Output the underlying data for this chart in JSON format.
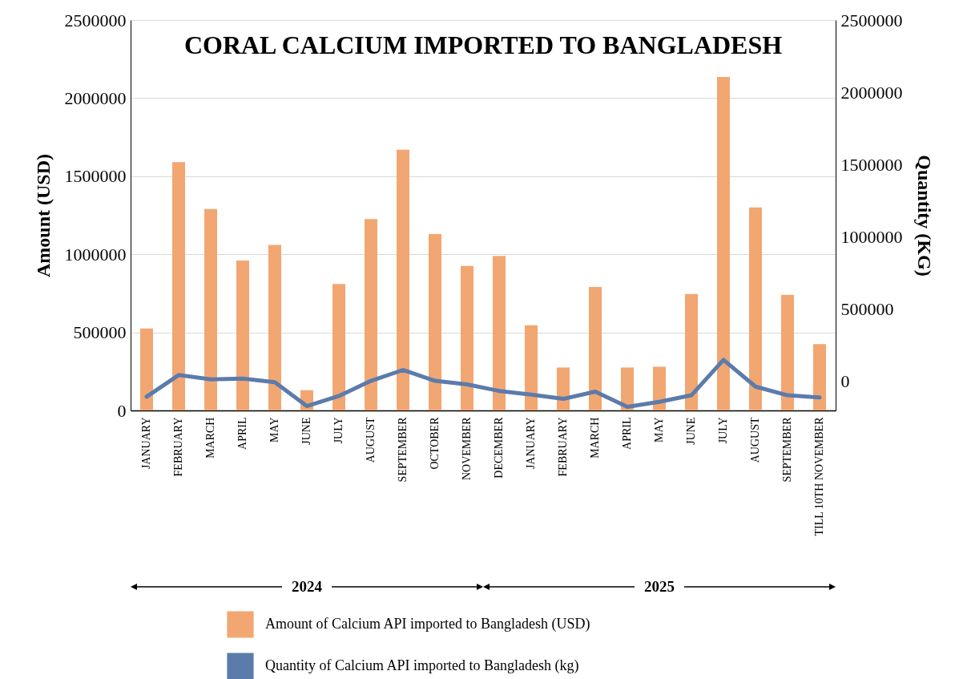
{
  "chart_data": {
    "type": "bar",
    "title": "CORAL CALCIUM IMPORTED TO BANGLADESH",
    "ylabel": "Amount (USD)",
    "y2label": "Quantity (KG)",
    "categories": [
      "JANUARY",
      "FEBRUARY",
      "MARCH",
      "APRIL",
      "MAY",
      "JUNE",
      "JULY",
      "AUGUST",
      "SEPTEMBER",
      "OCTOBER",
      "NOVEMBER",
      "DECEMBER",
      "JANUARY",
      "FEBRUARY",
      "MARCH",
      "APRIL",
      "MAY",
      "JUNE",
      "JULY",
      "AUGUST",
      "SEPTEMBER",
      "TILL 10TH NOVEMBER"
    ],
    "series": [
      {
        "name": "Amount of Calcium API imported to Bangladesh (USD)",
        "color": "#f2a672",
        "values": [
          525000,
          1590000,
          1290000,
          960000,
          1060000,
          130000,
          810000,
          1225000,
          1670000,
          1130000,
          925000,
          990000,
          545000,
          275000,
          790000,
          275000,
          280000,
          745000,
          2135000,
          1300000,
          740000,
          425000
        ]
      },
      {
        "name": "Quantity of Calcium API imported to Bangladesh (kg)",
        "type": "line",
        "axis": "y2",
        "color": "#5b7bab",
        "values": [
          -105000,
          45000,
          15000,
          20000,
          -5000,
          -170000,
          -100000,
          5000,
          80000,
          5000,
          -20000,
          -65000,
          -90000,
          -120000,
          -70000,
          -175000,
          -140000,
          -95000,
          150000,
          -35000,
          -95000,
          -110000
        ]
      }
    ],
    "ylim": [
      0,
      2500000
    ],
    "yticks": [
      0,
      500000,
      1000000,
      1500000,
      2000000,
      2500000
    ],
    "y2lim": [
      -200000,
      2500000
    ],
    "y2ticks": [
      0,
      500000,
      1000000,
      1500000,
      2000000,
      2500000
    ],
    "grid": "y",
    "legend": "bottom",
    "annotations": [
      "2024",
      "2025"
    ]
  }
}
